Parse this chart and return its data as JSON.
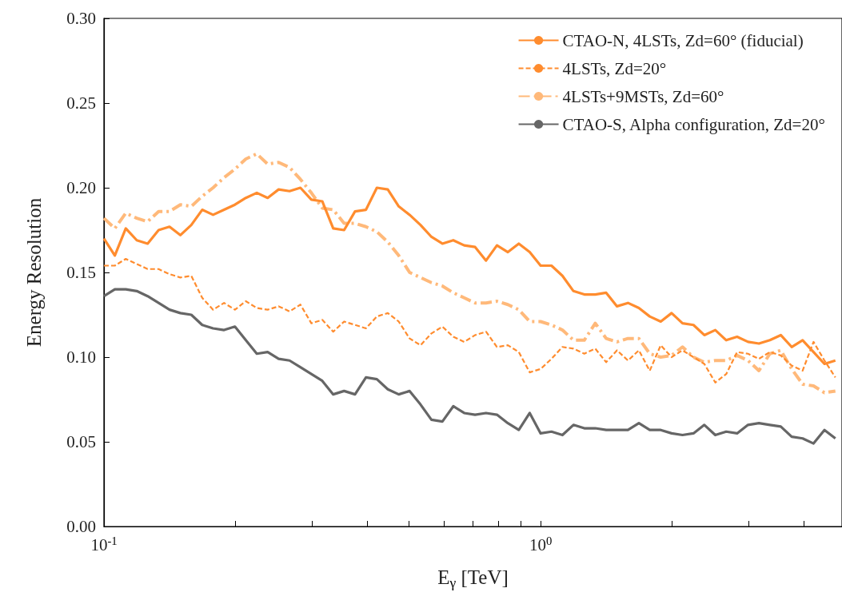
{
  "chart_data": {
    "type": "line",
    "xlabel": "E$_{γ}$ [TeV]",
    "ylabel": "Energy Resolution",
    "log": "x",
    "x": [
      0.1,
      0.1059,
      0.1122,
      0.1189,
      0.1259,
      0.1334,
      0.1413,
      0.1496,
      0.1585,
      0.1679,
      0.1778,
      0.1884,
      0.1995,
      0.2113,
      0.2239,
      0.2371,
      0.2512,
      0.2661,
      0.2818,
      0.2985,
      0.3162,
      0.335,
      0.3548,
      0.3758,
      0.3981,
      0.4217,
      0.4467,
      0.4732,
      0.5012,
      0.5309,
      0.5623,
      0.5957,
      0.631,
      0.6683,
      0.7079,
      0.7499,
      0.7943,
      0.8414,
      0.8913,
      0.9441,
      1,
      1.059,
      1.122,
      1.189,
      1.259,
      1.334,
      1.413,
      1.496,
      1.585,
      1.679,
      1.778,
      1.884,
      1.995,
      2.113,
      2.239,
      2.371,
      2.512,
      2.661,
      2.818,
      2.985,
      3.162,
      3.35,
      3.548,
      3.758,
      3.981,
      4.217,
      4.467,
      4.732
    ],
    "series": [
      {
        "name": "CTAO-N, 4LSTs, Zd=60° (fiducial)",
        "color": "#ff8c2e",
        "line_style": "solid",
        "values": [
          0.17,
          0.16,
          0.176,
          0.169,
          0.167,
          0.175,
          0.177,
          0.172,
          0.178,
          0.187,
          0.184,
          0.187,
          0.19,
          0.194,
          0.197,
          0.194,
          0.199,
          0.198,
          0.2,
          0.193,
          0.192,
          0.176,
          0.175,
          0.186,
          0.187,
          0.2,
          0.199,
          0.189,
          0.184,
          0.178,
          0.171,
          0.167,
          0.169,
          0.166,
          0.165,
          0.157,
          0.166,
          0.162,
          0.167,
          0.162,
          0.154,
          0.154,
          0.148,
          0.139,
          0.137,
          0.137,
          0.138,
          0.13,
          0.132,
          0.129,
          0.124,
          0.121,
          0.126,
          0.12,
          0.119,
          0.113,
          0.116,
          0.11,
          0.112,
          0.109,
          0.108,
          0.11,
          0.113,
          0.106,
          0.11,
          0.103,
          0.096,
          0.098
        ]
      },
      {
        "name": "4LSTs, Zd=20°",
        "color": "#ff8c2e",
        "line_style": "dashed",
        "values": [
          0.154,
          0.154,
          0.158,
          0.155,
          0.152,
          0.152,
          0.149,
          0.147,
          0.148,
          0.135,
          0.128,
          0.132,
          0.128,
          0.133,
          0.129,
          0.128,
          0.13,
          0.127,
          0.131,
          0.12,
          0.122,
          0.115,
          0.121,
          0.119,
          0.117,
          0.124,
          0.126,
          0.121,
          0.111,
          0.107,
          0.114,
          0.118,
          0.112,
          0.109,
          0.113,
          0.115,
          0.106,
          0.107,
          0.103,
          0.091,
          0.093,
          0.099,
          0.106,
          0.105,
          0.102,
          0.105,
          0.097,
          0.104,
          0.098,
          0.104,
          0.092,
          0.107,
          0.1,
          0.104,
          0.1,
          0.096,
          0.085,
          0.09,
          0.103,
          0.102,
          0.099,
          0.103,
          0.101,
          0.095,
          0.092,
          0.109,
          0.098,
          0.088
        ]
      },
      {
        "name": "4LSTs+9MSTs, Zd=60°",
        "color": "#ffb97a",
        "line_style": "dashdot",
        "values": [
          0.182,
          0.176,
          0.185,
          0.182,
          0.18,
          0.186,
          0.186,
          0.19,
          0.189,
          0.195,
          0.2,
          0.206,
          0.211,
          0.217,
          0.22,
          0.214,
          0.215,
          0.212,
          0.205,
          0.197,
          0.188,
          0.187,
          0.179,
          0.179,
          0.177,
          0.174,
          0.168,
          0.16,
          0.15,
          0.147,
          0.144,
          0.142,
          0.138,
          0.135,
          0.132,
          0.132,
          0.133,
          0.131,
          0.128,
          0.121,
          0.121,
          0.119,
          0.116,
          0.11,
          0.11,
          0.12,
          0.111,
          0.109,
          0.111,
          0.111,
          0.102,
          0.1,
          0.101,
          0.106,
          0.1,
          0.097,
          0.098,
          0.098,
          0.101,
          0.098,
          0.092,
          0.102,
          0.104,
          0.093,
          0.084,
          0.083,
          0.079,
          0.08
        ]
      },
      {
        "name": "CTAO-S, Alpha configuration, Zd=20°",
        "color": "#666666",
        "line_style": "solid",
        "values": [
          0.136,
          0.14,
          0.14,
          0.139,
          0.136,
          0.132,
          0.128,
          0.126,
          0.125,
          0.119,
          0.117,
          0.116,
          0.118,
          0.11,
          0.102,
          0.103,
          0.099,
          0.098,
          0.094,
          0.09,
          0.086,
          0.078,
          0.08,
          0.078,
          0.088,
          0.087,
          0.081,
          0.078,
          0.08,
          0.072,
          0.063,
          0.062,
          0.071,
          0.067,
          0.066,
          0.067,
          0.066,
          0.061,
          0.057,
          0.067,
          0.055,
          0.056,
          0.054,
          0.06,
          0.058,
          0.058,
          0.057,
          0.057,
          0.057,
          0.061,
          0.057,
          0.057,
          0.055,
          0.054,
          0.055,
          0.06,
          0.054,
          0.056,
          0.055,
          0.06,
          0.061,
          0.06,
          0.059,
          0.053,
          0.052,
          0.049,
          0.057,
          0.052
        ]
      }
    ],
    "xlim": [
      0.1,
      4.9
    ],
    "xticks": [
      {
        "value": 0.1,
        "label": "10$^{-1}$"
      },
      {
        "value": 0.2,
        "label": null
      },
      {
        "value": 0.3,
        "label": null
      },
      {
        "value": 0.4,
        "label": null
      },
      {
        "value": 0.5,
        "label": null
      },
      {
        "value": 0.6,
        "label": null
      },
      {
        "value": 0.7,
        "label": null
      },
      {
        "value": 0.8,
        "label": null
      },
      {
        "value": 0.9,
        "label": null
      },
      {
        "value": 1,
        "label": "10$^{0}$"
      },
      {
        "value": 2,
        "label": null
      },
      {
        "value": 3,
        "label": null
      },
      {
        "value": 4,
        "label": null
      }
    ],
    "ylim": [
      0,
      0.3
    ],
    "yticks": [
      {
        "value": 0,
        "label": "0.00"
      },
      {
        "value": 0.05,
        "label": "0.05"
      },
      {
        "value": 0.1,
        "label": "0.10"
      },
      {
        "value": 0.15,
        "label": "0.15"
      },
      {
        "value": 0.2,
        "label": "0.20"
      },
      {
        "value": 0.25,
        "label": "0.25"
      },
      {
        "value": 0.3,
        "label": "0.30"
      }
    ],
    "grid": false,
    "legend": "top right",
    "marker": "none"
  }
}
